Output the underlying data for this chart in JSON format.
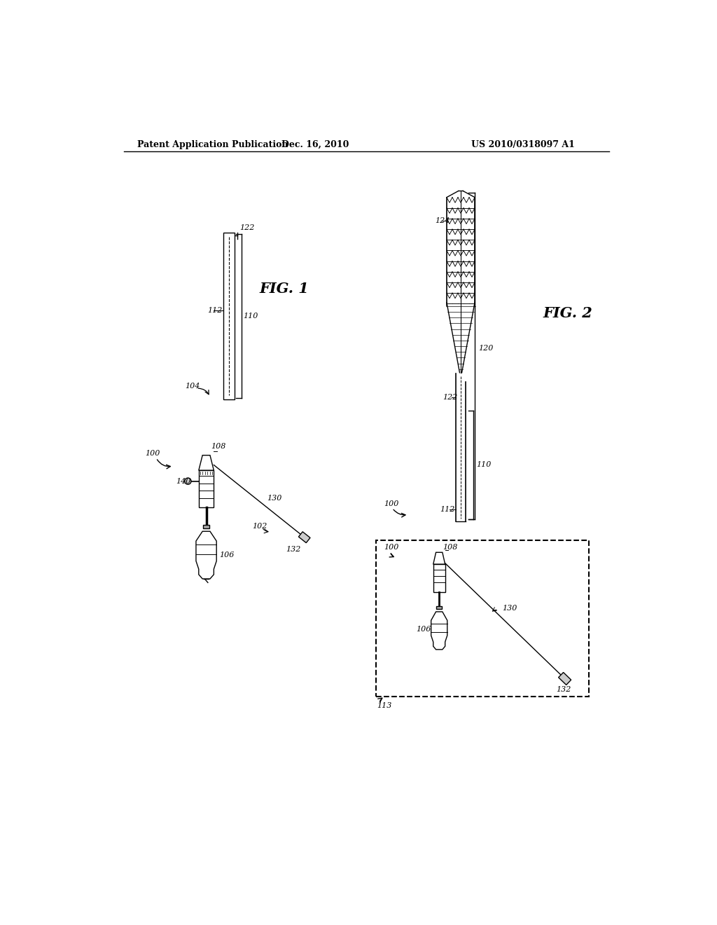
{
  "background_color": "#ffffff",
  "text_color": "#000000",
  "line_color": "#000000",
  "header": {
    "left": "Patent Application Publication",
    "center": "Dec. 16, 2010",
    "right": "US 2010/0318097 A1"
  },
  "fig1_label": "FIG. 1",
  "fig2_label": "FIG. 2",
  "labels": {
    "100": "100",
    "102": "102",
    "104": "104",
    "106": "106",
    "108": "108",
    "110": "110",
    "112": "112",
    "113": "113",
    "120": "120",
    "122": "122",
    "124": "124",
    "130": "130",
    "132": "132",
    "140": "140"
  }
}
